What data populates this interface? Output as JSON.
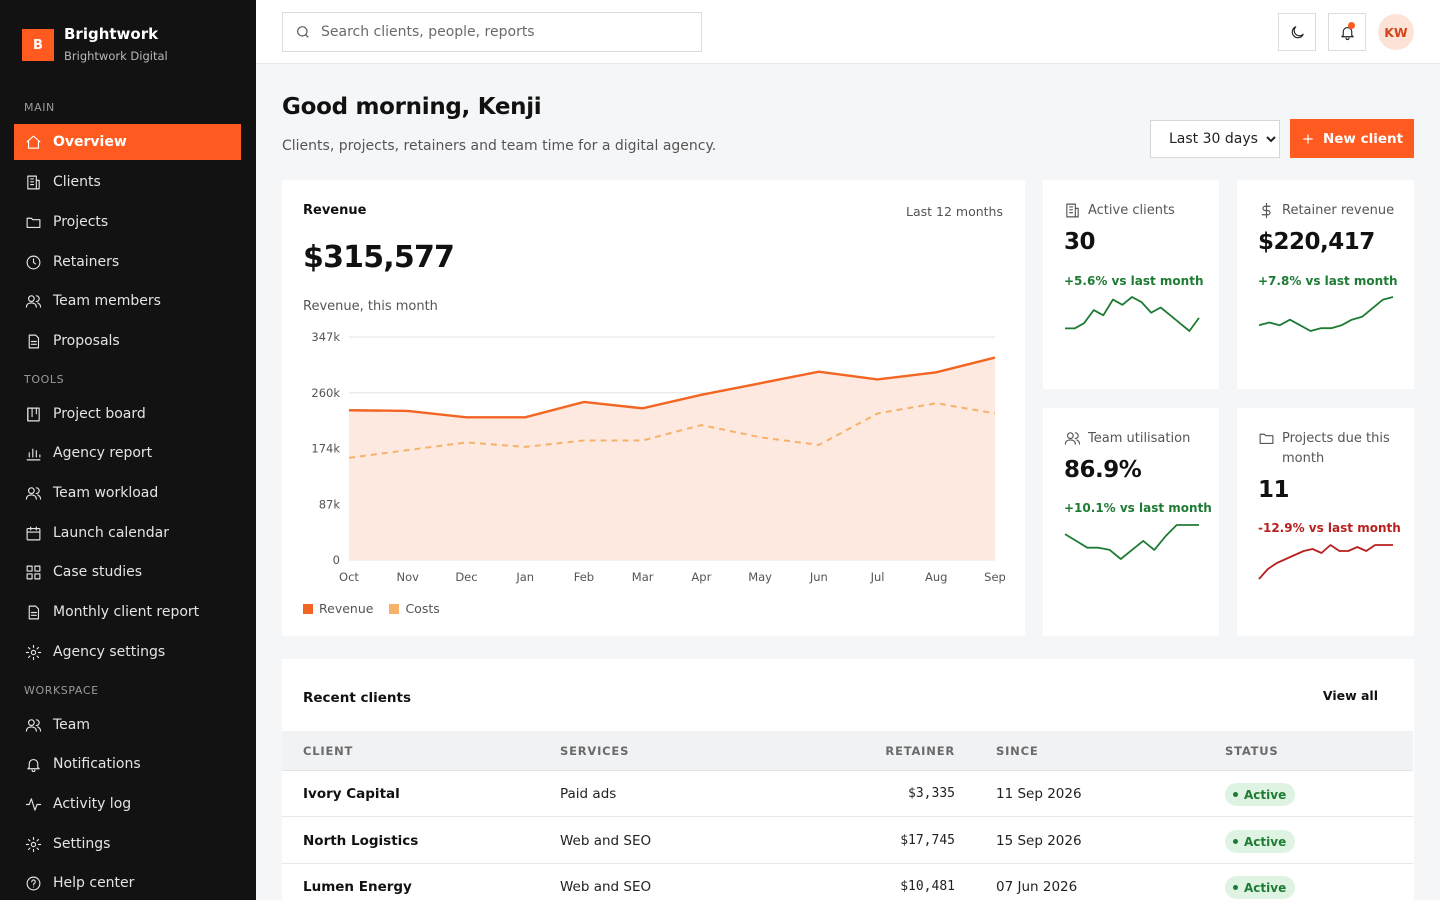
{
  "brand": {
    "initial": "B",
    "name": "Brightwork",
    "subtitle": "Brightwork Digital"
  },
  "sidebar": {
    "sections": {
      "main": "MAIN",
      "tools": "TOOLS",
      "workspace": "WORKSPACE"
    },
    "items": [
      {
        "label": "Overview",
        "icon": "home-icon"
      },
      {
        "label": "Clients",
        "icon": "building-icon"
      },
      {
        "label": "Projects",
        "icon": "folder-icon"
      },
      {
        "label": "Retainers",
        "icon": "clock-icon"
      },
      {
        "label": "Team members",
        "icon": "users-icon"
      },
      {
        "label": "Proposals",
        "icon": "document-icon"
      },
      {
        "label": "Project board",
        "icon": "kanban-icon"
      },
      {
        "label": "Agency report",
        "icon": "bar-chart-icon"
      },
      {
        "label": "Team workload",
        "icon": "users-icon"
      },
      {
        "label": "Launch calendar",
        "icon": "calendar-icon"
      },
      {
        "label": "Case studies",
        "icon": "grid-icon"
      },
      {
        "label": "Monthly client report",
        "icon": "document-icon"
      },
      {
        "label": "Agency settings",
        "icon": "gear-icon"
      },
      {
        "label": "Team",
        "icon": "users-icon"
      },
      {
        "label": "Notifications",
        "icon": "bell-icon"
      },
      {
        "label": "Activity log",
        "icon": "activity-icon"
      },
      {
        "label": "Settings",
        "icon": "gear-icon"
      },
      {
        "label": "Help center",
        "icon": "help-icon"
      }
    ]
  },
  "search": {
    "placeholder": "Search clients, people, reports"
  },
  "user": {
    "initials": "KW"
  },
  "header": {
    "greeting": "Good morning, Kenji",
    "subtitle": "Clients, projects, retainers and team time for a digital agency.",
    "range": "Last 30 days",
    "new_button": "New client"
  },
  "revenue": {
    "title": "Revenue",
    "range": "Last 12 months",
    "value": "$315,577",
    "caption": "Revenue, this month"
  },
  "chart_data": {
    "type": "area",
    "categories": [
      "Oct",
      "Nov",
      "Dec",
      "Jan",
      "Feb",
      "Mar",
      "Apr",
      "May",
      "Jun",
      "Jul",
      "Aug",
      "Sep"
    ],
    "series": [
      {
        "name": "Revenue",
        "values": [
          233,
          232,
          222,
          222,
          246,
          236,
          257,
          275,
          293,
          281,
          292,
          315
        ],
        "color": "#f26522"
      },
      {
        "name": "Costs",
        "values": [
          159,
          171,
          183,
          176,
          186,
          186,
          210,
          191,
          179,
          228,
          244,
          228
        ],
        "color": "#f6b26b"
      }
    ],
    "yticks": [
      "0",
      "87k",
      "174k",
      "260k",
      "347k"
    ],
    "ylim": [
      0,
      347
    ],
    "grid": true,
    "legend": "bottom-left"
  },
  "stats": [
    {
      "label": "Active clients",
      "icon": "building-icon",
      "value": "30",
      "delta": "+5.6% vs last month",
      "trend": "up",
      "spark": [
        4,
        4,
        6,
        11,
        9,
        15,
        13,
        16,
        14,
        10,
        12,
        9,
        6,
        3,
        8
      ]
    },
    {
      "label": "Retainer revenue",
      "icon": "dollar-icon",
      "value": "$220,417",
      "delta": "+7.8% vs last month",
      "trend": "up",
      "spark": [
        5,
        6,
        5,
        7,
        5,
        3,
        4,
        4,
        5,
        7,
        8,
        11,
        14,
        15
      ]
    },
    {
      "label": "Team utilisation",
      "icon": "users-icon",
      "value": "86.9%",
      "delta": "+10.1% vs last month",
      "trend": "up",
      "spark": [
        14,
        11,
        8,
        8,
        7,
        3,
        7,
        11,
        7,
        13,
        18,
        18,
        18
      ]
    },
    {
      "label": "Projects due this month",
      "icon": "folder-icon",
      "value": "11",
      "delta": "-12.9% vs last month",
      "trend": "down",
      "spark": [
        3,
        8,
        11,
        13,
        15,
        17,
        18,
        16,
        20,
        17,
        17,
        19,
        17,
        20,
        20,
        20
      ]
    }
  ],
  "clients": {
    "title": "Recent clients",
    "view_all": "View all",
    "columns": [
      "CLIENT",
      "SERVICES",
      "RETAINER",
      "SINCE",
      "STATUS"
    ],
    "rows": [
      {
        "client": "Ivory Capital",
        "services": "Paid ads",
        "retainer": "$3,335",
        "since": "11 Sep 2026",
        "status": "Active"
      },
      {
        "client": "North Logistics",
        "services": "Web and SEO",
        "retainer": "$17,745",
        "since": "15 Sep 2026",
        "status": "Active"
      },
      {
        "client": "Lumen Energy",
        "services": "Web and SEO",
        "retainer": "$10,481",
        "since": "07 Jun 2026",
        "status": "Active"
      }
    ]
  },
  "colors": {
    "accent": "#ff5a1f",
    "sidebar": "#121212",
    "positive": "#1e7b34",
    "negative": "#b81f1f"
  }
}
